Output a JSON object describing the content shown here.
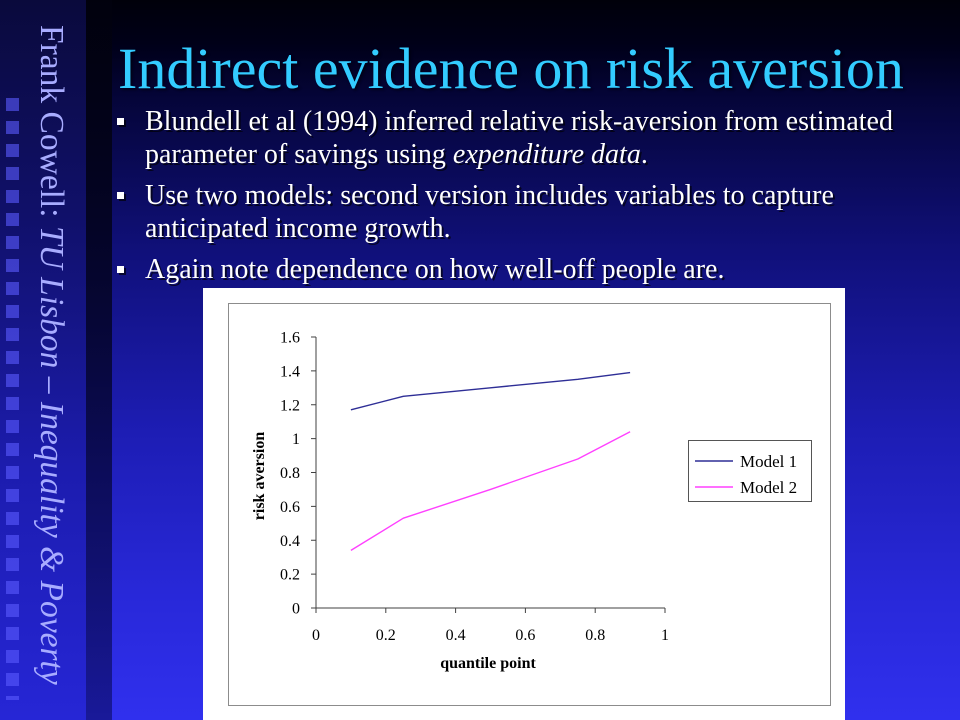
{
  "slide": {
    "side_text": {
      "plain": "Frank Cowell: ",
      "italic": "TU Lisbon – Inequality & Poverty"
    },
    "title": "Indirect evidence on risk aversion",
    "bullets": [
      {
        "text": "Blundell et al (1994) inferred relative risk-aversion from estimated parameter of savings using ",
        "italic": "expenditure data",
        "after": "."
      },
      {
        "text": "Use two models: second version includes variables to capture anticipated income growth."
      },
      {
        "text": "Again note dependence on how well-off people are."
      }
    ]
  },
  "colors": {
    "title": "#33ccff",
    "bullet_text": "#ffffff",
    "side_text": "#a8acff",
    "background_top": "#000018",
    "background_bottom": "#3030ee"
  },
  "chart_data": {
    "type": "line",
    "x": [
      0.1,
      0.25,
      0.5,
      0.75,
      0.9
    ],
    "series": [
      {
        "name": "Model 1",
        "values": [
          1.17,
          1.25,
          1.3,
          1.35,
          1.39
        ],
        "color": "#2e2e96"
      },
      {
        "name": "Model 2",
        "values": [
          0.34,
          0.53,
          0.7,
          0.88,
          1.04
        ],
        "color": "#ff40ff"
      }
    ],
    "xlabel": "quantile point",
    "ylabel": "risk aversion",
    "xlim": [
      0,
      1
    ],
    "ylim": [
      0,
      1.6
    ],
    "xticks": [
      "0",
      "0.2",
      "0.4",
      "0.6",
      "0.8",
      "1"
    ],
    "yticks": [
      "0",
      "0.2",
      "0.4",
      "0.6",
      "0.8",
      "1",
      "1.2",
      "1.4",
      "1.6"
    ],
    "grid": false,
    "legend": "right"
  }
}
